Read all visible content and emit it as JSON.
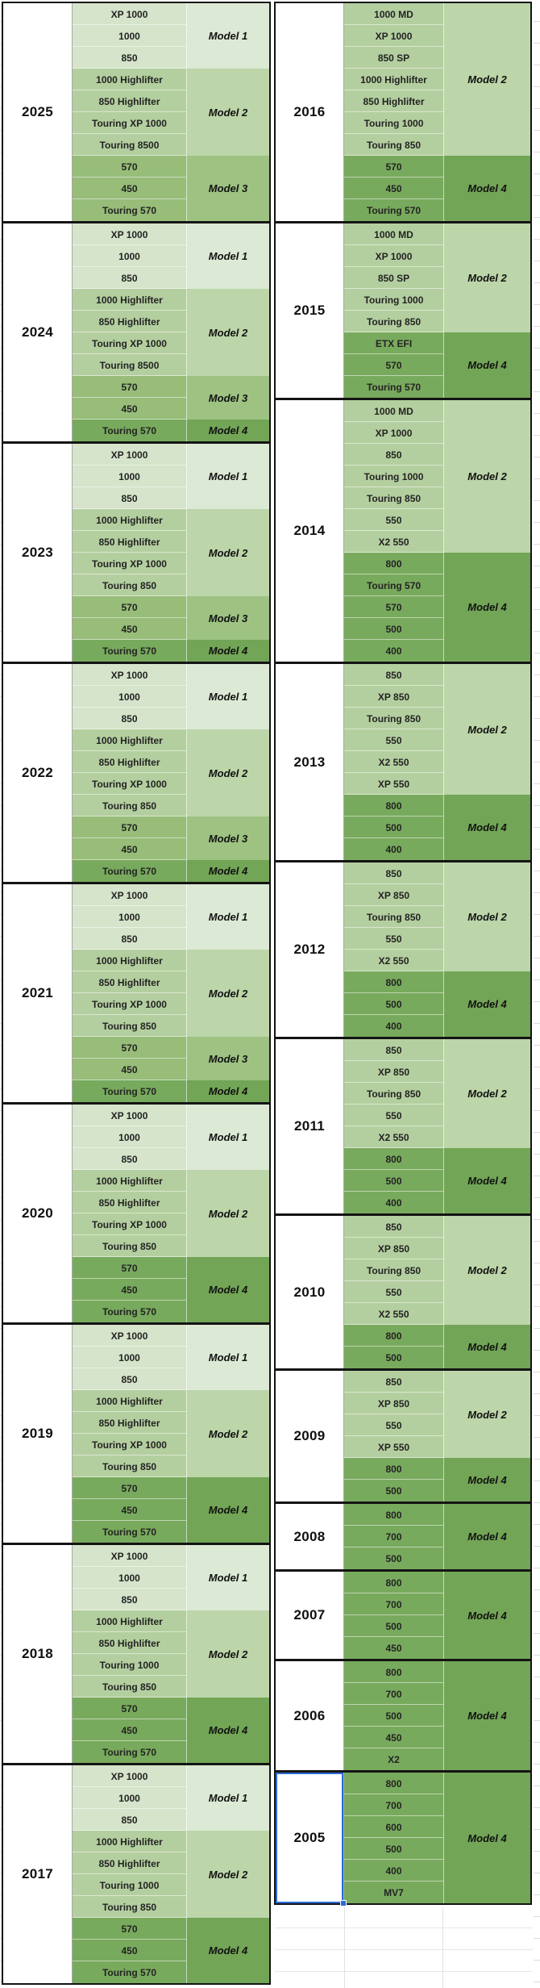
{
  "palette": {
    "model1_row": "#d5e4ca",
    "model1_label": "#dce9d5",
    "model2_row": "#b4cf9f",
    "model2_label": "#bcd5a9",
    "model3_row": "#97bd79",
    "model3_label": "#9dc282",
    "model4_row": "#78aa5d",
    "model4_label": "#72a556",
    "table_border": "#141414",
    "selection_blue": "#2f6bd8",
    "gridline": "#dcdcdc"
  },
  "selection": {
    "selected_year": "2005"
  },
  "tables": {
    "left": {
      "blocks": [
        {
          "year": "2025",
          "groups": [
            {
              "label": "Model 1",
              "tier": 1,
              "models": [
                "XP 1000",
                "1000",
                "850"
              ]
            },
            {
              "label": "Model 2",
              "tier": 2,
              "models": [
                "1000 Highlifter",
                "850 Highlifter",
                "Touring XP 1000",
                "Touring 8500"
              ]
            },
            {
              "label": "Model 3",
              "tier": 3,
              "models": [
                "570",
                "450",
                "Touring 570"
              ]
            }
          ]
        },
        {
          "year": "2024",
          "groups": [
            {
              "label": "Model 1",
              "tier": 1,
              "models": [
                "XP 1000",
                "1000",
                "850"
              ]
            },
            {
              "label": "Model 2",
              "tier": 2,
              "models": [
                "1000 Highlifter",
                "850 Highlifter",
                "Touring XP 1000",
                "Touring 8500"
              ]
            },
            {
              "label": "Model 3",
              "tier": 3,
              "models": [
                "570",
                "450"
              ]
            },
            {
              "label": "Model 4",
              "tier": 4,
              "models": [
                "Touring 570"
              ]
            }
          ]
        },
        {
          "year": "2023",
          "groups": [
            {
              "label": "Model 1",
              "tier": 1,
              "models": [
                "XP 1000",
                "1000",
                "850"
              ]
            },
            {
              "label": "Model 2",
              "tier": 2,
              "models": [
                "1000 Highlifter",
                "850 Highlifter",
                "Touring XP 1000",
                "Touring 850"
              ]
            },
            {
              "label": "Model 3",
              "tier": 3,
              "models": [
                "570",
                "450"
              ]
            },
            {
              "label": "Model 4",
              "tier": 4,
              "models": [
                "Touring 570"
              ]
            }
          ]
        },
        {
          "year": "2022",
          "groups": [
            {
              "label": "Model 1",
              "tier": 1,
              "models": [
                "XP 1000",
                "1000",
                "850"
              ]
            },
            {
              "label": "Model 2",
              "tier": 2,
              "models": [
                "1000 Highlifter",
                "850 Highlifter",
                "Touring XP 1000",
                "Touring 850"
              ]
            },
            {
              "label": "Model 3",
              "tier": 3,
              "models": [
                "570",
                "450"
              ]
            },
            {
              "label": "Model 4",
              "tier": 4,
              "models": [
                "Touring 570"
              ]
            }
          ]
        },
        {
          "year": "2021",
          "groups": [
            {
              "label": "Model 1",
              "tier": 1,
              "models": [
                "XP 1000",
                "1000",
                "850"
              ]
            },
            {
              "label": "Model 2",
              "tier": 2,
              "models": [
                "1000 Highlifter",
                "850 Highlifter",
                "Touring XP 1000",
                "Touring 850"
              ]
            },
            {
              "label": "Model 3",
              "tier": 3,
              "models": [
                "570",
                "450"
              ]
            },
            {
              "label": "Model 4",
              "tier": 4,
              "models": [
                "Touring 570"
              ]
            }
          ]
        },
        {
          "year": "2020",
          "groups": [
            {
              "label": "Model 1",
              "tier": 1,
              "models": [
                "XP 1000",
                "1000",
                "850"
              ]
            },
            {
              "label": "Model 2",
              "tier": 2,
              "models": [
                "1000 Highlifter",
                "850 Highlifter",
                "Touring XP 1000",
                "Touring 850"
              ]
            },
            {
              "label": "Model 4",
              "tier": 4,
              "models": [
                "570",
                "450",
                "Touring 570"
              ]
            }
          ]
        },
        {
          "year": "2019",
          "groups": [
            {
              "label": "Model 1",
              "tier": 1,
              "models": [
                "XP 1000",
                "1000",
                "850"
              ]
            },
            {
              "label": "Model 2",
              "tier": 2,
              "models": [
                "1000 Highlifter",
                "850 Highlifter",
                "Touring XP 1000",
                "Touring 850"
              ]
            },
            {
              "label": "Model 4",
              "tier": 4,
              "models": [
                "570",
                "450",
                "Touring 570"
              ]
            }
          ]
        },
        {
          "year": "2018",
          "groups": [
            {
              "label": "Model 1",
              "tier": 1,
              "models": [
                "XP 1000",
                "1000",
                "850"
              ]
            },
            {
              "label": "Model 2",
              "tier": 2,
              "models": [
                "1000 Highlifter",
                "850 Highlifter",
                "Touring 1000",
                "Touring 850"
              ]
            },
            {
              "label": "Model 4",
              "tier": 4,
              "models": [
                "570",
                "450",
                "Touring 570"
              ]
            }
          ]
        },
        {
          "year": "2017",
          "groups": [
            {
              "label": "Model 1",
              "tier": 1,
              "models": [
                "XP 1000",
                "1000",
                "850"
              ]
            },
            {
              "label": "Model 2",
              "tier": 2,
              "models": [
                "1000 Highlifter",
                "850 Highlifter",
                "Touring 1000",
                "Touring 850"
              ]
            },
            {
              "label": "Model 4",
              "tier": 4,
              "models": [
                "570",
                "450",
                "Touring 570"
              ]
            }
          ]
        }
      ]
    },
    "right": {
      "blocks": [
        {
          "year": "2016",
          "groups": [
            {
              "label": "Model 2",
              "tier": 2,
              "models": [
                "1000 MD",
                "XP 1000",
                "850 SP",
                "1000 Highlifter",
                "850 Highlifter",
                "Touring 1000",
                "Touring 850"
              ]
            },
            {
              "label": "Model 4",
              "tier": 4,
              "models": [
                "570",
                "450",
                "Touring 570"
              ]
            }
          ]
        },
        {
          "year": "2015",
          "groups": [
            {
              "label": "Model 2",
              "tier": 2,
              "models": [
                "1000 MD",
                "XP 1000",
                "850 SP",
                "Touring 1000",
                "Touring 850"
              ]
            },
            {
              "label": "Model 4",
              "tier": 4,
              "models": [
                "ETX EFI",
                "570",
                "Touring 570"
              ]
            }
          ]
        },
        {
          "year": "2014",
          "groups": [
            {
              "label": "Model 2",
              "tier": 2,
              "models": [
                "1000 MD",
                "XP 1000",
                "850",
                "Touring 1000",
                "Touring 850",
                "550",
                "X2 550"
              ]
            },
            {
              "label": "Model 4",
              "tier": 4,
              "models": [
                "800",
                "Touring 570",
                "570",
                "500",
                "400"
              ]
            }
          ]
        },
        {
          "year": "2013",
          "groups": [
            {
              "label": "Model 2",
              "tier": 2,
              "models": [
                "850",
                "XP 850",
                "Touring 850",
                "550",
                "X2 550",
                "XP 550"
              ]
            },
            {
              "label": "Model 4",
              "tier": 4,
              "models": [
                "800",
                "500",
                "400"
              ]
            }
          ]
        },
        {
          "year": "2012",
          "groups": [
            {
              "label": "Model 2",
              "tier": 2,
              "models": [
                "850",
                "XP 850",
                "Touring 850",
                "550",
                "X2 550"
              ]
            },
            {
              "label": "Model 4",
              "tier": 4,
              "models": [
                "800",
                "500",
                "400"
              ]
            }
          ]
        },
        {
          "year": "2011",
          "groups": [
            {
              "label": "Model 2",
              "tier": 2,
              "models": [
                "850",
                "XP 850",
                "Touring 850",
                "550",
                "X2 550"
              ]
            },
            {
              "label": "Model 4",
              "tier": 4,
              "models": [
                "800",
                "500",
                "400"
              ]
            }
          ]
        },
        {
          "year": "2010",
          "groups": [
            {
              "label": "Model 2",
              "tier": 2,
              "models": [
                "850",
                "XP 850",
                "Touring 850",
                "550",
                "X2 550"
              ]
            },
            {
              "label": "Model 4",
              "tier": 4,
              "models": [
                "800",
                "500"
              ]
            }
          ]
        },
        {
          "year": "2009",
          "groups": [
            {
              "label": "Model 2",
              "tier": 2,
              "models": [
                "850",
                "XP 850",
                "550",
                "XP 550"
              ]
            },
            {
              "label": "Model 4",
              "tier": 4,
              "models": [
                "800",
                "500"
              ]
            }
          ]
        },
        {
          "year": "2008",
          "groups": [
            {
              "label": "Model 4",
              "tier": 4,
              "models": [
                "800",
                "700",
                "500"
              ]
            }
          ]
        },
        {
          "year": "2007",
          "groups": [
            {
              "label": "Model 4",
              "tier": 4,
              "models": [
                "800",
                "700",
                "500",
                "450"
              ]
            }
          ]
        },
        {
          "year": "2006",
          "groups": [
            {
              "label": "Model 4",
              "tier": 4,
              "models": [
                "800",
                "700",
                "500",
                "450",
                "X2"
              ]
            }
          ]
        },
        {
          "year": "2005",
          "groups": [
            {
              "label": "Model 4",
              "tier": 4,
              "models": [
                "800",
                "700",
                "600",
                "500",
                "400",
                "MV7"
              ]
            }
          ]
        }
      ]
    }
  }
}
